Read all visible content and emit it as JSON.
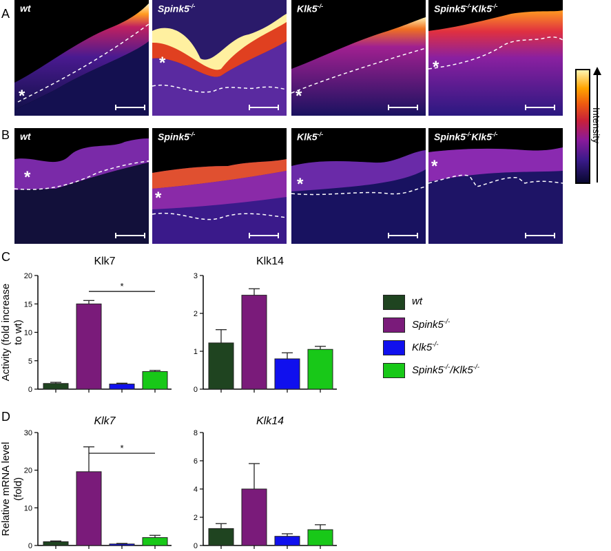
{
  "panels": {
    "A": "A",
    "B": "B",
    "C": "C",
    "D": "D"
  },
  "micrographs": {
    "A": [
      {
        "genotype": "wt",
        "sup": "",
        "star": "*"
      },
      {
        "genotype": "Spink5",
        "sup": "-/-",
        "star": "*"
      },
      {
        "genotype": "Klk5",
        "sup": "-/-",
        "star": "*"
      },
      {
        "genotype": "Spink5",
        "sup": "-/-",
        "genotype2": "Klk5",
        "sup2": "-/-",
        "star": "*"
      }
    ],
    "B": [
      {
        "genotype": "wt",
        "sup": "",
        "star": "*"
      },
      {
        "genotype": "Spink5",
        "sup": "-/-",
        "star": "*"
      },
      {
        "genotype": "Klk5",
        "sup": "-/-",
        "star": "*"
      },
      {
        "genotype": "Spink5",
        "sup": "-/-",
        "genotype2": "Klk5",
        "sup2": "-/-",
        "star": "*"
      }
    ]
  },
  "colorbar": {
    "label": "Intensity",
    "colors": [
      "#080830",
      "#3a1a8a",
      "#8a1a9a",
      "#c8203a",
      "#ee5a10",
      "#ffa300",
      "#fff5b0"
    ]
  },
  "legend": [
    {
      "name": "wt",
      "sup": "",
      "color": "#1f4420"
    },
    {
      "name": "Spink5",
      "sup": "-/-",
      "color": "#7a1b7a"
    },
    {
      "name": "Klk5",
      "sup": "-/-",
      "color": "#1010ee"
    },
    {
      "name": "Spink5",
      "sup": "-/-",
      "name2": "/Klk5",
      "sup2": "-/-",
      "color": "#18c818"
    }
  ],
  "chart_data": [
    {
      "type": "bar",
      "id": "C-Klk7",
      "title": "Klk7",
      "title_italic": false,
      "ylabel_lines": [
        "Activity (fold increase",
        "to wt)"
      ],
      "ylim": [
        0,
        20
      ],
      "yticks": [
        "0",
        "5",
        "10",
        "15",
        "20"
      ],
      "values": [
        1.0,
        15.0,
        0.9,
        3.1
      ],
      "errors": [
        0.2,
        0.6,
        0.15,
        0.2
      ],
      "significance": {
        "from": 1,
        "to": 3,
        "label": "*",
        "y": 17.2
      }
    },
    {
      "type": "bar",
      "id": "C-Klk14",
      "title": "Klk14",
      "title_italic": false,
      "ylabel_lines": [],
      "ylim": [
        0,
        3
      ],
      "yticks": [
        "0",
        "1",
        "2",
        "3"
      ],
      "values": [
        1.22,
        2.48,
        0.8,
        1.05
      ],
      "errors": [
        0.35,
        0.17,
        0.16,
        0.08
      ],
      "significance": null
    },
    {
      "type": "bar",
      "id": "D-Klk7",
      "title": "Klk7",
      "title_italic": true,
      "ylabel_lines": [
        "Relative mRNA level",
        "(fold)"
      ],
      "ylim": [
        0,
        30
      ],
      "yticks": [
        "0",
        "10",
        "20",
        "30"
      ],
      "values": [
        1.0,
        19.6,
        0.4,
        2.1
      ],
      "errors": [
        0.2,
        6.6,
        0.15,
        0.6
      ],
      "significance": {
        "from": 1,
        "to": 3,
        "label": "*",
        "y": 24.5
      }
    },
    {
      "type": "bar",
      "id": "D-Klk14",
      "title": "Klk14",
      "title_italic": true,
      "ylabel_lines": [],
      "ylim": [
        0,
        8
      ],
      "yticks": [
        "0",
        "2",
        "4",
        "6",
        "8"
      ],
      "values": [
        1.2,
        4.0,
        0.65,
        1.12
      ],
      "errors": [
        0.35,
        1.8,
        0.18,
        0.35
      ],
      "significance": null
    }
  ]
}
